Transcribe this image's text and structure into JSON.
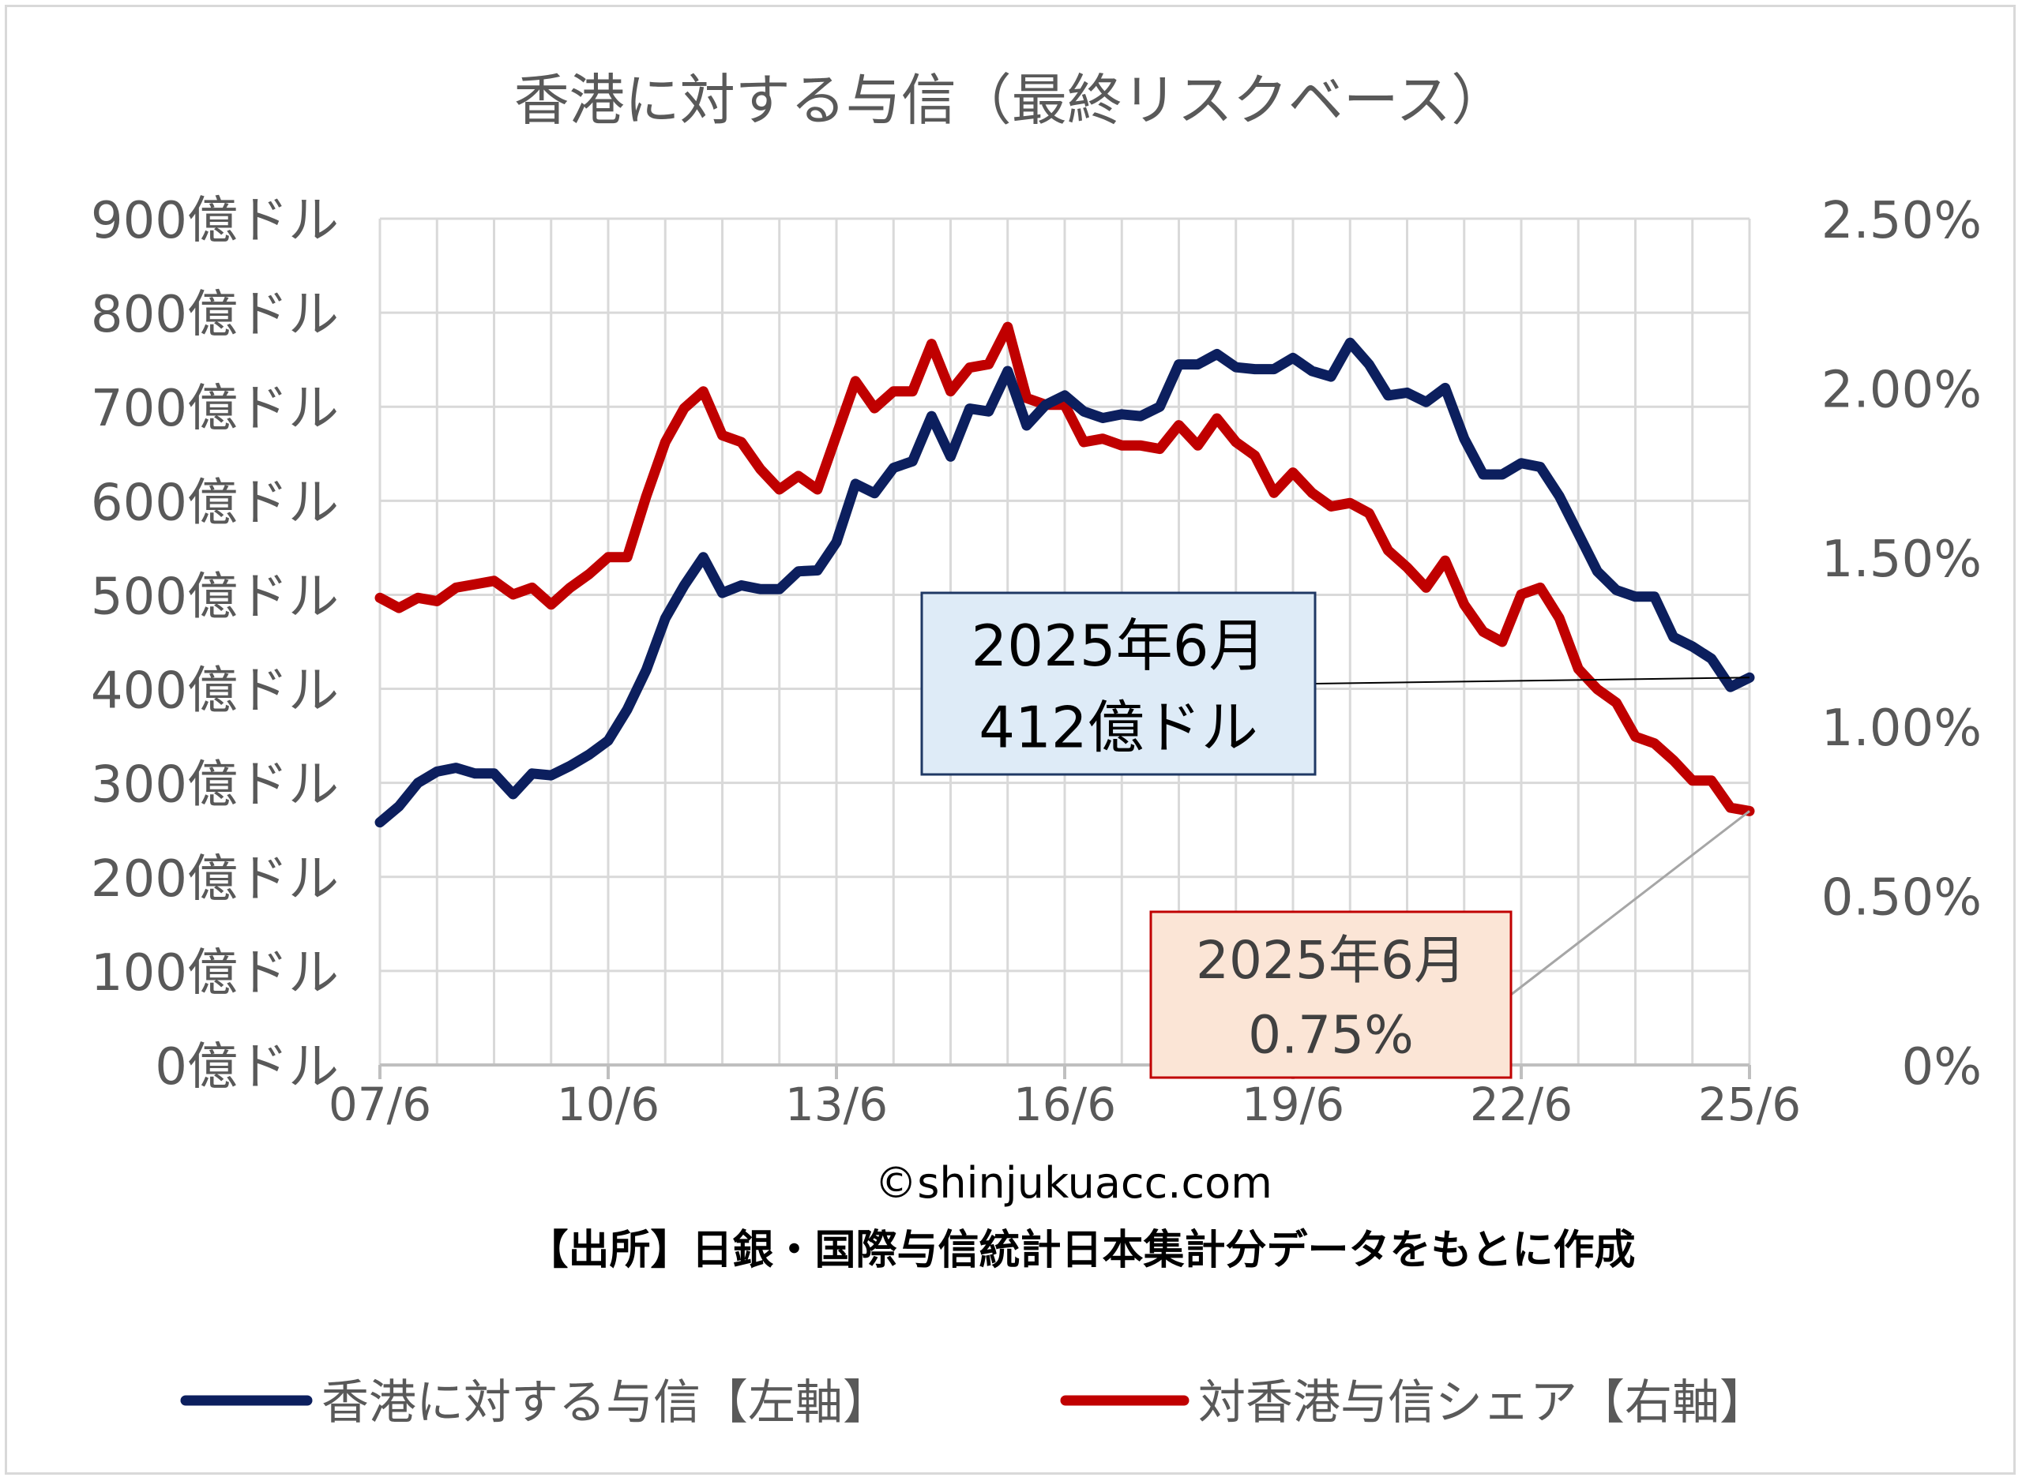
{
  "chart_data": {
    "type": "line",
    "title": "香港に対する与信（最終リスクベース）",
    "x_tick_labels": [
      "07/6",
      "10/6",
      "13/6",
      "16/6",
      "19/6",
      "22/6",
      "25/6"
    ],
    "y_left": {
      "min": 0,
      "max": 900,
      "step": 100,
      "tick_labels": [
        "0億ドル",
        "100億ドル",
        "200億ドル",
        "300億ドル",
        "400億ドル",
        "500億ドル",
        "600億ドル",
        "700億ドル",
        "800億ドル",
        "900億ドル"
      ]
    },
    "y_right": {
      "min": 0,
      "max": 2.5,
      "step": 0.5,
      "tick_labels": [
        "0%",
        "0.50%",
        "1.00%",
        "1.50%",
        "2.00%",
        "2.50%"
      ]
    },
    "grid": true,
    "legend_position": "bottom",
    "series": [
      {
        "name": "香港に対する与信【左軸】",
        "axis": "left",
        "color": "#0c1f5e",
        "unit": "億ドル",
        "values": [
          258,
          275,
          300,
          312,
          316,
          310,
          310,
          288,
          310,
          308,
          318,
          330,
          345,
          378,
          420,
          475,
          510,
          540,
          502,
          510,
          506,
          506,
          525,
          526,
          556,
          618,
          608,
          635,
          642,
          690,
          647,
          698,
          695,
          738,
          680,
          702,
          712,
          695,
          688,
          692,
          690,
          700,
          745,
          745,
          756,
          742,
          740,
          740,
          752,
          738,
          732,
          768,
          745,
          712,
          715,
          705,
          720,
          666,
          628,
          628,
          640,
          636,
          605,
          565,
          525,
          505,
          498,
          498,
          455,
          445,
          432,
          402,
          412
        ]
      },
      {
        "name": "対香港与信シェア【右軸】",
        "axis": "right",
        "color": "#c00000",
        "unit": "%",
        "values": [
          1.38,
          1.35,
          1.38,
          1.37,
          1.41,
          1.42,
          1.43,
          1.39,
          1.41,
          1.36,
          1.41,
          1.45,
          1.5,
          1.5,
          1.68,
          1.84,
          1.94,
          1.99,
          1.86,
          1.84,
          1.76,
          1.7,
          1.74,
          1.7,
          1.86,
          2.02,
          1.94,
          1.99,
          1.99,
          2.13,
          1.99,
          2.06,
          2.07,
          2.18,
          1.97,
          1.95,
          1.95,
          1.84,
          1.85,
          1.83,
          1.83,
          1.82,
          1.89,
          1.83,
          1.91,
          1.84,
          1.8,
          1.69,
          1.75,
          1.69,
          1.65,
          1.66,
          1.63,
          1.52,
          1.47,
          1.41,
          1.49,
          1.36,
          1.28,
          1.25,
          1.39,
          1.41,
          1.32,
          1.17,
          1.11,
          1.07,
          0.97,
          0.95,
          0.9,
          0.84,
          0.84,
          0.76,
          0.75
        ]
      }
    ],
    "annotations": [
      {
        "line1": "2025年6月",
        "line2": "412億ドル",
        "series": 0,
        "fill": "#deebf7",
        "border": "#1f3864"
      },
      {
        "line1": "2025年6月",
        "line2": "0.75%",
        "series": 1,
        "fill": "#fbe5d6",
        "border": "#c00000"
      }
    ],
    "footer": {
      "copyright": "©shinjukuacc.com",
      "source": "【出所】日銀・国際与信統計日本集計分データをもとに作成"
    }
  }
}
